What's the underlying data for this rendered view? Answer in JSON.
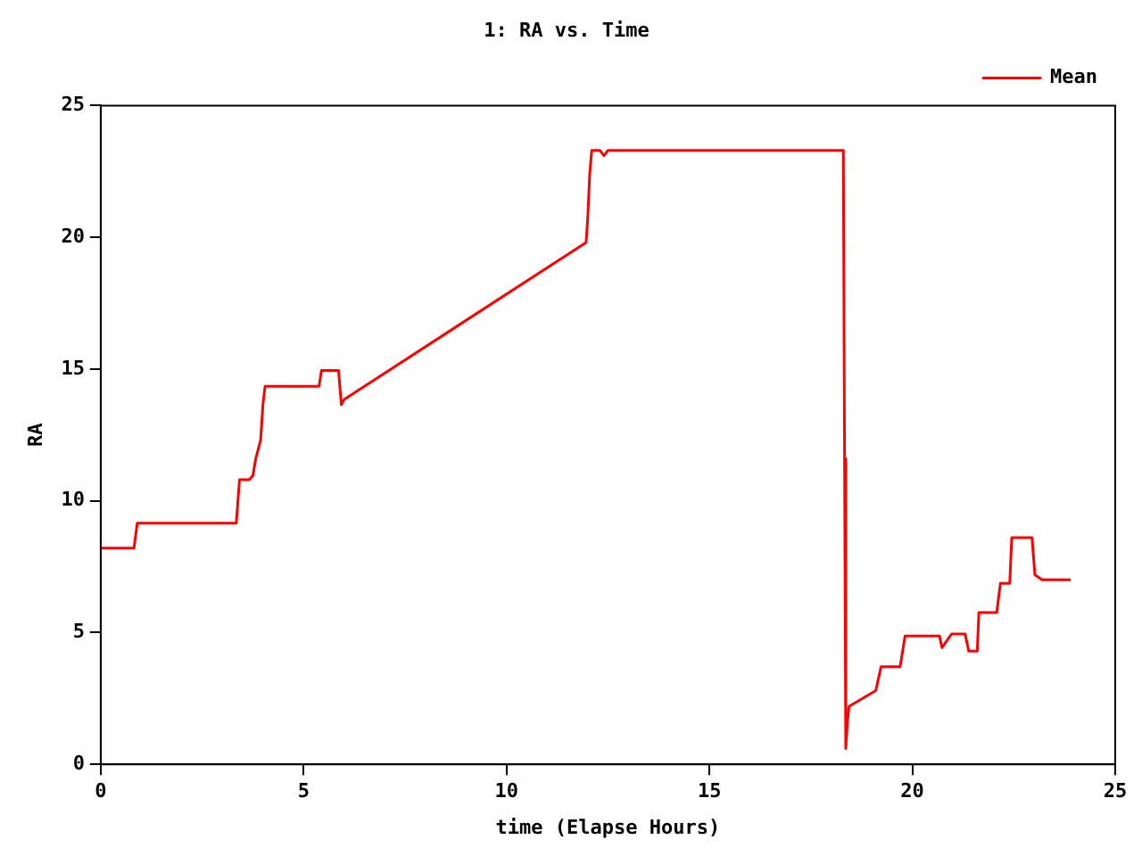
{
  "chart_data": {
    "type": "line",
    "title": "1: RA vs. Time",
    "xlabel": "time (Elapse Hours)",
    "ylabel": "RA",
    "xlim": [
      0,
      25
    ],
    "xticks": [
      0,
      5,
      10,
      15,
      20,
      25
    ],
    "ylim": [
      0,
      25
    ],
    "yticks": [
      0,
      5,
      10,
      15,
      20,
      25
    ],
    "grid": false,
    "legend": "top right",
    "marker": "none",
    "line_style": "solid",
    "series": [
      {
        "name": "Mean",
        "color": "#ff0000",
        "x": [
          0,
          0.82,
          0.9,
          3.34,
          3.42,
          3.66,
          3.75,
          3.82,
          3.94,
          4.0,
          4.05,
          5.38,
          5.44,
          5.86,
          5.93,
          6.0,
          11.96,
          12.0,
          12.05,
          12.1,
          12.3,
          12.4,
          12.5,
          18.3,
          18.33,
          18.36,
          18.4,
          18.44,
          19.1,
          19.23,
          19.7,
          19.82,
          20.67,
          20.73,
          20.97,
          21.3,
          21.39,
          21.6,
          21.64,
          22.08,
          22.17,
          22.4,
          22.45,
          22.95,
          23.02,
          23.2,
          23.9
        ],
        "values": [
          8.2,
          8.2,
          9.15,
          9.15,
          10.8,
          10.8,
          10.95,
          11.6,
          12.3,
          13.7,
          14.35,
          14.35,
          14.95,
          14.95,
          13.65,
          13.85,
          19.8,
          20.7,
          22.4,
          23.3,
          23.3,
          23.1,
          23.3,
          23.3,
          11.6,
          0.6,
          1.6,
          2.2,
          2.8,
          3.7,
          3.7,
          4.87,
          4.87,
          4.43,
          4.95,
          4.95,
          4.3,
          4.3,
          5.76,
          5.76,
          6.87,
          6.87,
          8.6,
          8.6,
          7.19,
          7.0,
          7.0
        ]
      }
    ]
  }
}
